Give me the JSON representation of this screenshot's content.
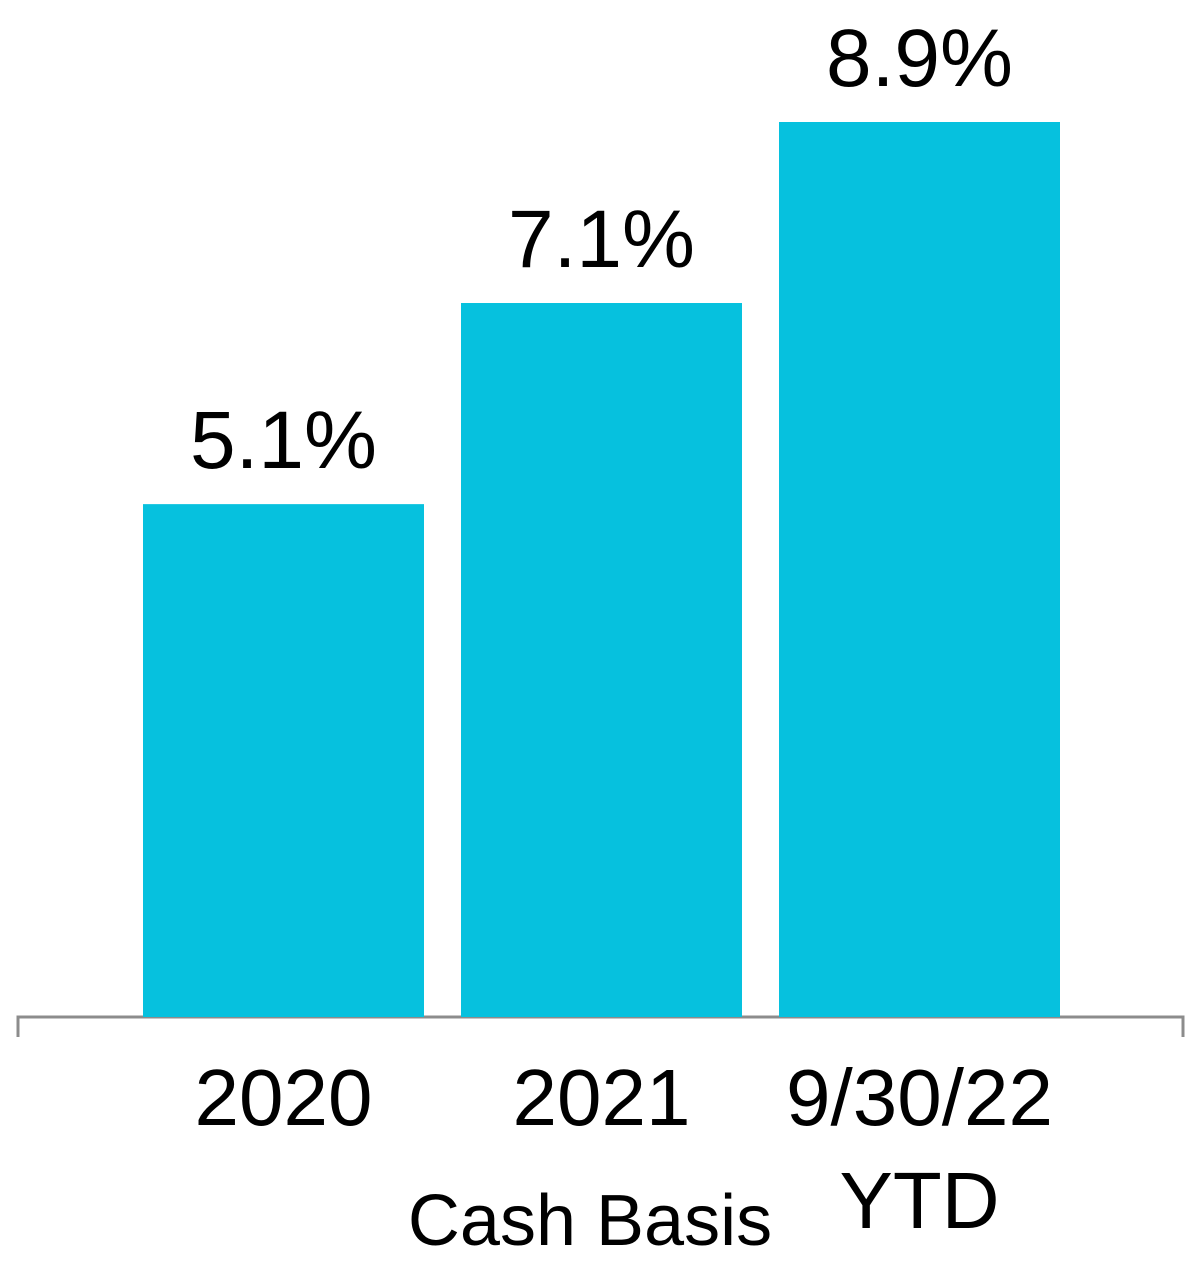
{
  "chart_data": {
    "type": "bar",
    "categories": [
      "2020",
      "2021",
      "9/30/22 YTD"
    ],
    "values": [
      5.1,
      7.1,
      8.9
    ],
    "value_labels": [
      "5.1%",
      "7.1%",
      "8.9%"
    ],
    "color": "#06c1de",
    "x_label": "Cash Basis"
  }
}
